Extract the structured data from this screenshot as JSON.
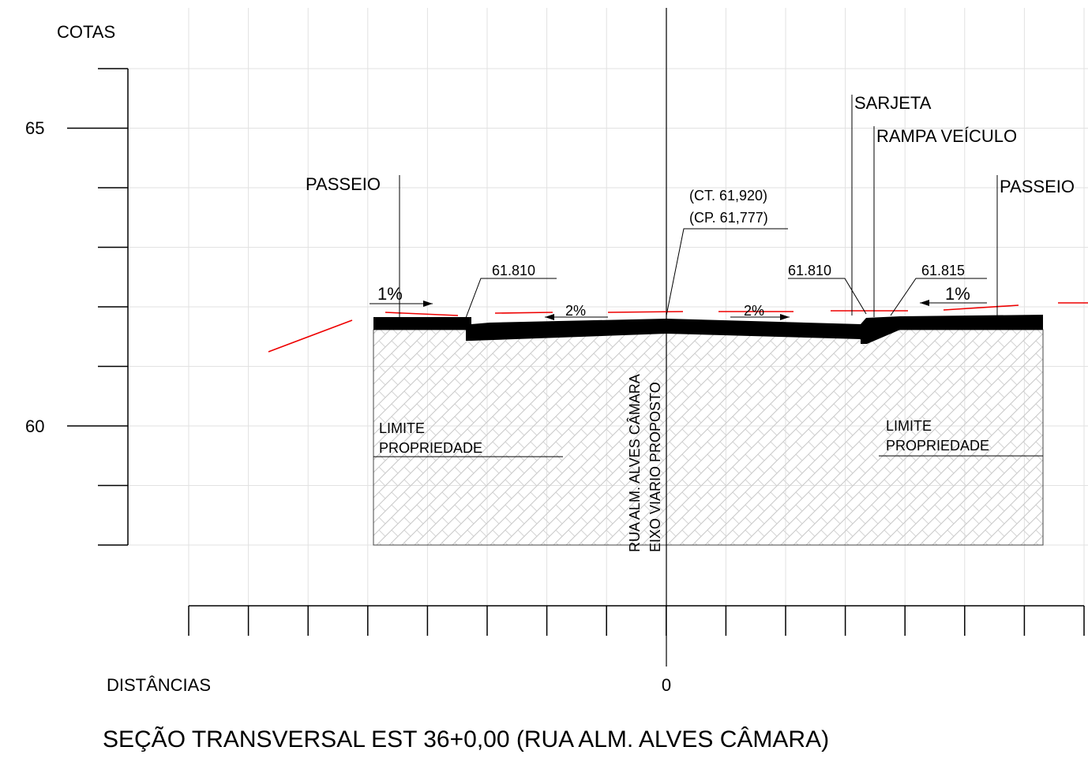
{
  "y_axis": {
    "title": "COTAS",
    "ticks": [
      "65",
      "60"
    ]
  },
  "x_axis": {
    "title": "DISTÂNCIAS",
    "ticks": [
      "0"
    ]
  },
  "title": "SEÇÃO TRANSVERSAL EST 36+0,00 (RUA ALM. ALVES CÂMARA)",
  "labels": {
    "passeio_left": "PASSEIO",
    "passeio_right": "PASSEIO",
    "sarjeta": "SARJETA",
    "rampa": "RAMPA VEÍCULO",
    "ct": "(CT. 61,920)",
    "cp": "(CP. 61,777)",
    "elev_left": "61.810",
    "elev_mid": "61.810",
    "elev_right": "61.815",
    "slope_sidewalk_left": "1%",
    "slope_sidewalk_right": "1%",
    "slope_road_left": "2%",
    "slope_road_right": "2%",
    "limite_left": [
      "LIMITE",
      "PROPRIEDADE"
    ],
    "limite_right": [
      "LIMITE",
      "PROPRIEDADE"
    ],
    "street": "RUA ALM. ALVES CÂMARA",
    "axis": "EIXO VIARIO PROPOSTO"
  }
}
